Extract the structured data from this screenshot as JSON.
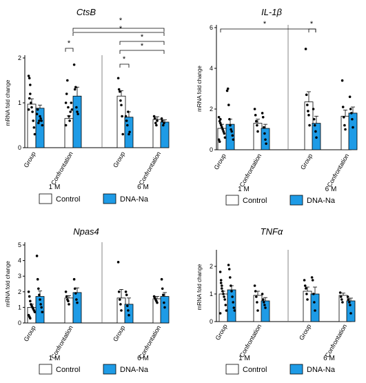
{
  "colors": {
    "control": "#ffffff",
    "dna": "#1e9be6",
    "stroke": "#000000"
  },
  "chart_data": [
    {
      "type": "bar",
      "title": "CtsB",
      "ylabel": "mRNA fold change",
      "ylim": [
        0,
        2
      ],
      "yticks": [
        "0",
        "1",
        "2"
      ],
      "categories": [
        "Group",
        "Confrontation",
        "Group",
        "Confrontation"
      ],
      "ages": [
        "1 M",
        "6 M"
      ],
      "series": [
        {
          "name": "Control",
          "values": [
            0.97,
            0.65,
            1.15,
            0.63
          ],
          "errors": [
            0.12,
            0.06,
            0.12,
            0.06
          ]
        },
        {
          "name": "DNA-Na",
          "values": [
            0.88,
            1.15,
            0.68,
            0.57
          ],
          "errors": [
            0.07,
            0.2,
            0.12,
            0.05
          ]
        }
      ],
      "points": [
        [
          [
            1.6,
            1.55,
            1.2,
            1.0,
            0.9,
            0.8,
            0.6,
            0.45,
            0.3,
            0.85,
            1.1,
            1.4
          ],
          [
            0.75,
            0.85,
            0.55,
            0.6,
            0.7,
            0.65,
            0.6,
            0.5
          ]
        ],
        [
          [
            1.0,
            1.2,
            1.5,
            0.9,
            0.7,
            0.6,
            0.8,
            1.0,
            0.85,
            0.5
          ],
          [
            1.85,
            1.3,
            1.35,
            0.9,
            0.8,
            0.75
          ]
        ],
        [
          [
            1.55,
            1.3,
            1.25,
            1.05,
            0.95,
            0.7,
            0.3
          ],
          [
            0.7,
            0.6,
            0.5,
            0.8,
            0.3,
            0.35
          ]
        ],
        [
          [
            0.7,
            0.65,
            0.55,
            0.5,
            0.6
          ],
          [
            0.65,
            0.6,
            0.5,
            0.55
          ]
        ]
      ],
      "significance": [
        "*",
        "*",
        "*",
        "*",
        "*",
        "*"
      ],
      "legend": [
        "Control",
        "DNA-Na"
      ]
    },
    {
      "type": "bar",
      "title": "IL-1β",
      "ylabel": "mRNA fold change",
      "ylim": [
        0,
        6
      ],
      "yticks": [
        "0",
        "2",
        "4",
        "6"
      ],
      "categories": [
        "Group",
        "Confrontation",
        "Group",
        "Confrontation"
      ],
      "ages": [
        "1 M",
        "6 M"
      ],
      "series": [
        {
          "name": "Control",
          "values": [
            1.05,
            1.3,
            2.35,
            1.65
          ],
          "errors": [
            0.2,
            0.2,
            0.5,
            0.3
          ]
        },
        {
          "name": "DNA-Na",
          "values": [
            1.25,
            1.05,
            1.3,
            1.8
          ],
          "errors": [
            0.25,
            0.2,
            0.35,
            0.3
          ]
        }
      ],
      "points": [
        [
          [
            1.6,
            1.4,
            1.3,
            1.2,
            1.1,
            1.0,
            0.9,
            0.8,
            0.6,
            0.5,
            0.4,
            1.5
          ],
          [
            2.9,
            3.0,
            2.2,
            1.5,
            1.2,
            1.0,
            0.9,
            0.7,
            0.5
          ]
        ],
        [
          [
            2.0,
            1.7,
            1.4,
            1.2,
            0.9
          ],
          [
            1.8,
            1.6,
            1.1,
            0.8,
            0.5,
            0.3
          ]
        ],
        [
          [
            4.95,
            2.7,
            2.2,
            1.9,
            1.7,
            1.2
          ],
          [
            2.0,
            1.5,
            1.2,
            0.9,
            0.6
          ]
        ],
        [
          [
            3.4,
            2.1,
            1.6,
            1.2,
            1.0
          ],
          [
            2.6,
            2.0,
            1.8,
            1.5,
            1.1
          ]
        ]
      ],
      "significance": [
        "*",
        "*"
      ],
      "legend": [
        "Control",
        "DNA-Na"
      ]
    },
    {
      "type": "bar",
      "title": "Npas4",
      "ylabel": "mRNA fold change",
      "ylim": [
        0,
        5
      ],
      "yticks": [
        "0",
        "1",
        "2",
        "3",
        "4",
        "5"
      ],
      "categories": [
        "Group",
        "Confrontation",
        "Group",
        "Confrontation"
      ],
      "ages": [
        "1 M",
        "6 M"
      ],
      "series": [
        {
          "name": "Control",
          "values": [
            1.0,
            1.6,
            1.6,
            1.55
          ],
          "errors": [
            0.2,
            0.15,
            0.55,
            0.15
          ]
        },
        {
          "name": "DNA-Na",
          "values": [
            1.7,
            1.95,
            1.2,
            1.7
          ],
          "errors": [
            0.35,
            0.3,
            0.4,
            0.25
          ]
        }
      ],
      "points": [
        [
          [
            2.0,
            1.7,
            1.4,
            1.2,
            1.1,
            1.0,
            0.9,
            0.8,
            0.7,
            0.5,
            0.4,
            0.3
          ],
          [
            4.3,
            2.8,
            2.2,
            1.8,
            1.5,
            1.2,
            1.0,
            0.7
          ]
        ],
        [
          [
            2.0,
            1.7,
            1.5,
            1.4,
            1.2
          ],
          [
            2.8,
            2.2,
            1.9,
            1.5,
            1.3
          ]
        ],
        [
          [
            3.9,
            2.0,
            1.5,
            1.2,
            0.8
          ],
          [
            2.0,
            1.8,
            1.1,
            0.8,
            0.5
          ]
        ],
        [
          [
            1.7,
            1.6,
            1.5,
            1.4,
            1.3
          ],
          [
            2.8,
            2.2,
            1.8,
            1.3,
            1.0
          ]
        ]
      ],
      "significance": [],
      "legend": [
        "Control",
        "DNA-Na"
      ]
    },
    {
      "type": "bar",
      "title": "TNFα",
      "ylabel": "mRNA fold change",
      "ylim": [
        0,
        2.5
      ],
      "yticks": [
        "0",
        "1",
        "2"
      ],
      "categories": [
        "Group",
        "Confrontation",
        "Group",
        "Confrontation"
      ],
      "ages": [
        "1 M",
        "6 M"
      ],
      "series": [
        {
          "name": "Control",
          "values": [
            1.0,
            0.95,
            1.1,
            0.95
          ],
          "errors": [
            0.1,
            0.15,
            0.15,
            0.08
          ]
        },
        {
          "name": "DNA-Na",
          "values": [
            1.15,
            0.75,
            1.0,
            0.75
          ],
          "errors": [
            0.15,
            0.12,
            0.25,
            0.1
          ]
        }
      ],
      "points": [
        [
          [
            1.8,
            1.5,
            1.3,
            1.1,
            1.0,
            0.9,
            0.8,
            0.6,
            0.4,
            0.3,
            1.4,
            1.2
          ],
          [
            2.05,
            1.9,
            1.6,
            1.3,
            1.1,
            0.9,
            0.7,
            0.5,
            0.4
          ]
        ],
        [
          [
            1.3,
            1.1,
            0.9,
            0.7,
            0.4
          ],
          [
            1.0,
            0.8,
            0.7,
            0.6,
            0.5
          ]
        ],
        [
          [
            1.5,
            1.3,
            1.2,
            1.0,
            0.8
          ],
          [
            1.6,
            1.5,
            1.0,
            0.7,
            0.4
          ]
        ],
        [
          [
            1.05,
            0.9,
            0.8,
            0.7
          ],
          [
            0.9,
            0.8,
            0.7,
            0.6,
            0.3
          ]
        ]
      ],
      "significance": [],
      "legend": [
        "Control",
        "DNA-Na"
      ]
    }
  ]
}
